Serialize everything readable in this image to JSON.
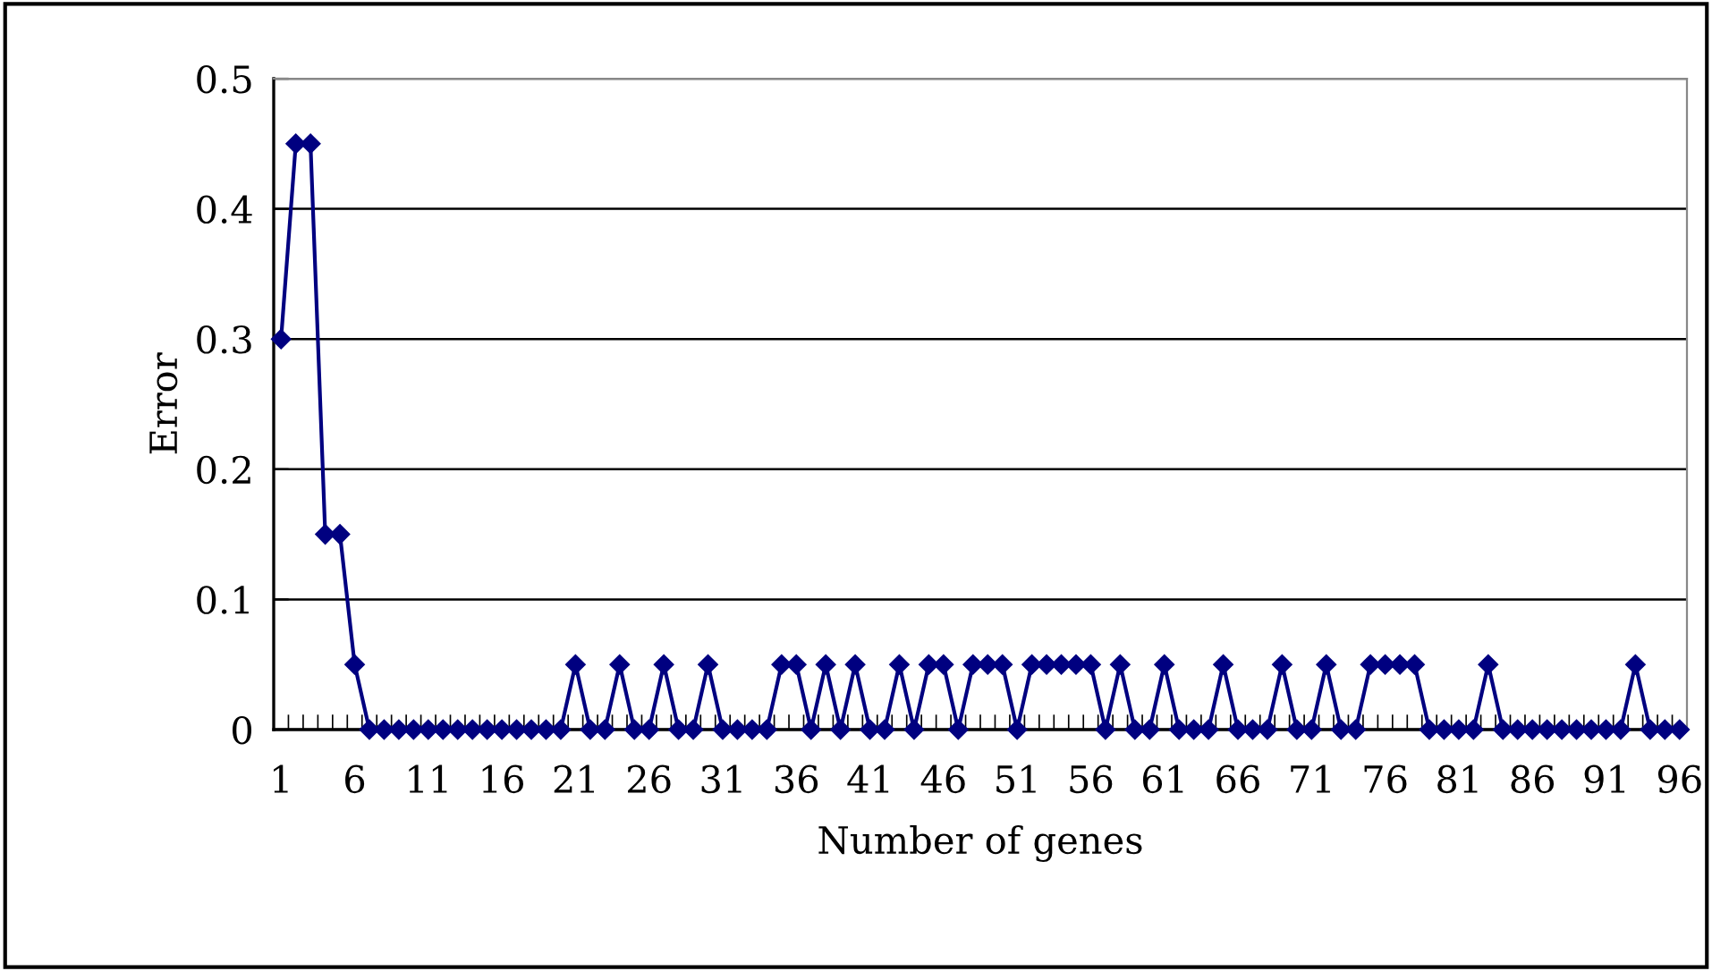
{
  "chart_data": {
    "type": "line",
    "xlabel": "Number of genes",
    "ylabel": "Error",
    "categories": [
      "1",
      null,
      null,
      null,
      null,
      "6",
      null,
      null,
      null,
      null,
      "11",
      null,
      null,
      null,
      null,
      "16",
      null,
      null,
      null,
      null,
      "21",
      null,
      null,
      null,
      null,
      "26",
      null,
      null,
      null,
      null,
      "31",
      null,
      null,
      null,
      null,
      "36",
      null,
      null,
      null,
      null,
      "41",
      null,
      null,
      null,
      null,
      "46",
      null,
      null,
      null,
      null,
      "51",
      null,
      null,
      null,
      null,
      "56",
      null,
      null,
      null,
      null,
      "61",
      null,
      null,
      null,
      null,
      "66",
      null,
      null,
      null,
      null,
      "71",
      null,
      null,
      null,
      null,
      "76",
      null,
      null,
      null,
      null,
      "81",
      null,
      null,
      null,
      null,
      "86",
      null,
      null,
      null,
      null,
      "91",
      null,
      null,
      null,
      null,
      "96"
    ],
    "series": [
      {
        "color": "#000080",
        "values": [
          0.3,
          0.45,
          0.45,
          0.15,
          0.15,
          0.05,
          0,
          0,
          0,
          0,
          0,
          0,
          0,
          0,
          0,
          0,
          0,
          0,
          0,
          0,
          0.05,
          0,
          0,
          0.05,
          0,
          0,
          0.05,
          0,
          0,
          0.05,
          0,
          0,
          0,
          0,
          0.05,
          0.05,
          0,
          0.05,
          0,
          0.05,
          0,
          0,
          0.05,
          0,
          0.05,
          0.05,
          0,
          0.05,
          0.05,
          0.05,
          0,
          0.05,
          0.05,
          0.05,
          0.05,
          0.05,
          0,
          0.05,
          0,
          0,
          0.05,
          0,
          0,
          0,
          0.05,
          0,
          0,
          0,
          0.05,
          0,
          0,
          0.05,
          0,
          0,
          0.05,
          0.05,
          0.05,
          0.05,
          0,
          0,
          0,
          0,
          0.05,
          0,
          0,
          0,
          0,
          0,
          0,
          0,
          0,
          0,
          0.05,
          0,
          0,
          0
        ]
      }
    ],
    "ylim": [
      0,
      0.5
    ],
    "yticks": [
      0,
      0.1,
      0.2,
      0.3,
      0.4,
      0.5
    ],
    "grid": "y",
    "marker": "diamond",
    "line_style": "solid"
  }
}
